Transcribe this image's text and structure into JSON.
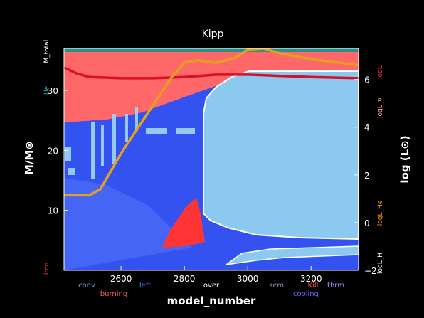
{
  "chart_data": {
    "type": "area",
    "title": "Kipp",
    "xlabel": "model_number",
    "ylabel_left": "M/M⊙",
    "ylabel_right": "log (L⊙)",
    "xlim": [
      2420,
      3350
    ],
    "ylim_left": [
      0,
      37
    ],
    "ylim_right": [
      -2,
      7.3
    ],
    "x_ticks": [
      2600,
      2800,
      3000,
      3200
    ],
    "y_ticks_left": [
      10,
      20,
      30
    ],
    "y_ticks_right": [
      -2,
      0,
      2,
      4,
      6
    ],
    "left_side_labels": [
      {
        "text": "M_total",
        "y": 36.5,
        "color": "#ffffff"
      },
      {
        "text": "He",
        "y": 30,
        "color": "#30b0b0"
      },
      {
        "text": "Iron",
        "y": 0.3,
        "color": "#ff3030"
      }
    ],
    "right_side_labels": [
      {
        "text": "logL",
        "y": 6.3,
        "color": "#ff3030"
      },
      {
        "text": "logL_ν",
        "y": 4.8,
        "color": "#ffb0a0"
      },
      {
        "text": "logL_He",
        "y": 0.4,
        "color": "#ffa000"
      },
      {
        "text": "logL_H",
        "y": -1.7,
        "color": "#ffffff"
      }
    ],
    "legend": [
      {
        "label": "conv",
        "color": "#5fa8e6",
        "row": 1
      },
      {
        "label": "burning",
        "color": "#ff6060",
        "row": 2
      },
      {
        "label": "left",
        "color": "#3a7bff",
        "row": 1
      },
      {
        "label": "over",
        "color": "#ffffff",
        "row": 1
      },
      {
        "label": "semi",
        "color": "#8890c8",
        "row": 1
      },
      {
        "label": "cooling",
        "color": "#6a6aff",
        "row": 2
      },
      {
        "label": "Kill",
        "color": "#ff4848",
        "row": 1
      },
      {
        "label": "thrm",
        "color": "#a080ff",
        "row": 1
      }
    ],
    "series": [
      {
        "name": "logL",
        "axis": "right",
        "color": "#d8102a",
        "x": [
          2420,
          2460,
          2500,
          2600,
          2700,
          2800,
          2900,
          3000,
          3100,
          3200,
          3350
        ],
        "y": [
          6.5,
          6.25,
          6.1,
          6.05,
          6.05,
          6.1,
          6.2,
          6.2,
          6.15,
          6.1,
          6.05
        ]
      },
      {
        "name": "logL_He",
        "axis": "right",
        "color": "#e0a020",
        "x": [
          2420,
          2500,
          2535,
          2600,
          2700,
          2760,
          2800,
          2840,
          2900,
          2960,
          3000,
          3050,
          3100,
          3200,
          3350
        ],
        "y": [
          1.15,
          1.15,
          1.4,
          2.9,
          4.9,
          6.1,
          6.7,
          6.8,
          6.7,
          6.9,
          7.25,
          7.3,
          7.1,
          6.85,
          6.6
        ]
      }
    ],
    "regions": [
      {
        "name": "burning",
        "color": "#ff6868"
      },
      {
        "name": "convective envelope",
        "color": "#3854f0"
      },
      {
        "name": "convective core",
        "color": "#8ccaee"
      }
    ],
    "grid": false
  }
}
